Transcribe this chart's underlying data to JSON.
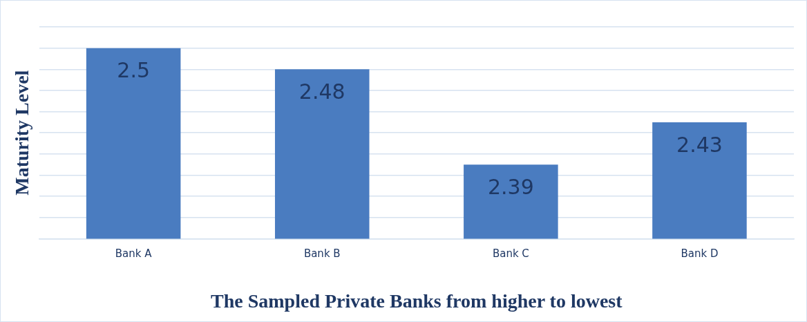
{
  "chart_data": {
    "type": "bar",
    "xlabel": "The Sampled Private Banks from higher to lowest",
    "ylabel": "Maturity Level",
    "categories": [
      "Bank A",
      "Bank B",
      "Bank C",
      "Bank D"
    ],
    "values": [
      2.5,
      2.48,
      2.39,
      2.43
    ],
    "color": "#4a7cc0",
    "ylim": [
      2.32,
      2.52
    ],
    "yticks": [
      {
        "value": 2.32,
        "label": null
      },
      {
        "value": 2.34,
        "label": null
      },
      {
        "value": 2.36,
        "label": null
      },
      {
        "value": 2.38,
        "label": null
      },
      {
        "value": 2.4,
        "label": null
      },
      {
        "value": 2.42,
        "label": null
      },
      {
        "value": 2.44,
        "label": null
      },
      {
        "value": 2.46,
        "label": null
      },
      {
        "value": 2.48,
        "label": null
      },
      {
        "value": 2.5,
        "label": null
      },
      {
        "value": 2.52,
        "label": null
      }
    ],
    "grid": "y",
    "tick_labels": "x",
    "data_labels": true,
    "legend": false
  }
}
